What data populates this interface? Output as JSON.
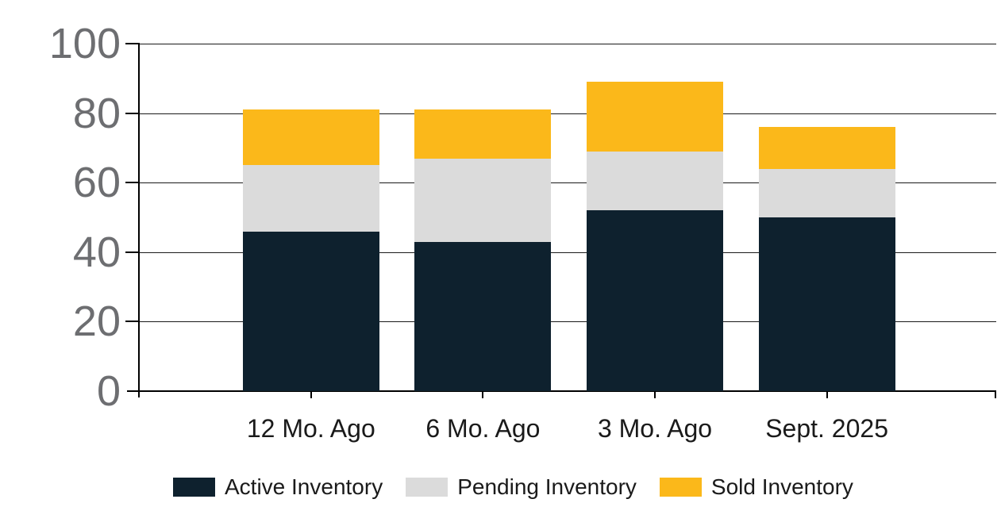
{
  "chart_data": {
    "type": "bar",
    "stacked": true,
    "title": "",
    "categories": [
      "12 Mo. Ago",
      "6 Mo. Ago",
      "3 Mo. Ago",
      "Sept. 2025"
    ],
    "series": [
      {
        "name": "Active Inventory",
        "color": "#0E212E",
        "values": [
          46,
          43,
          52,
          50
        ]
      },
      {
        "name": "Pending Inventory",
        "color": "#DBDBDB",
        "values": [
          19,
          24,
          17,
          14
        ]
      },
      {
        "name": "Sold Inventory",
        "color": "#FBB81A",
        "values": [
          16,
          14,
          20,
          12
        ]
      }
    ],
    "stack_totals": [
      81,
      81,
      89,
      76
    ],
    "xlabel": "",
    "ylabel": "",
    "ylim": [
      0,
      100
    ],
    "y_ticks": [
      0,
      20,
      40,
      60,
      80,
      100
    ],
    "grid": "horizontal",
    "legend_position": "bottom",
    "colors": {
      "axis_tick_label": "#6D6E71",
      "category_label": "#1A1A1A",
      "grid_line": "#1A1A1A",
      "axis_line": "#000000",
      "background": "#FFFFFF"
    }
  }
}
